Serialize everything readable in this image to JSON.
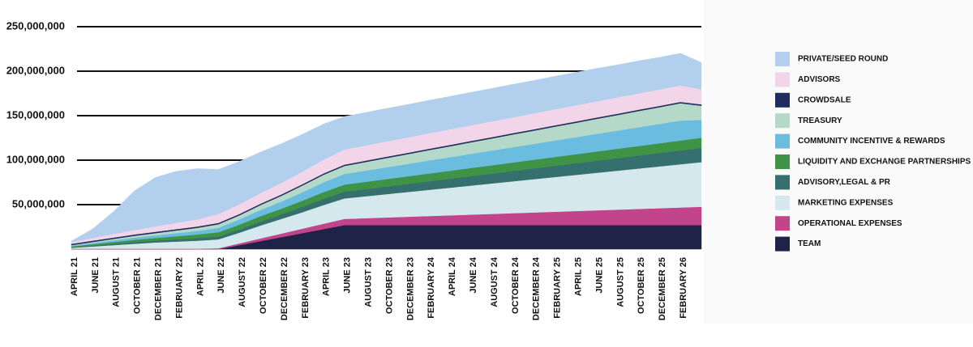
{
  "chart_data": {
    "type": "stacked-area",
    "categories": [
      "APRIL 21",
      "JUNE 21",
      "AUGUST 21",
      "OCTOBER 21",
      "DECEMBER 21",
      "FEBRUARY 22",
      "APRIL 22",
      "JUNE 22",
      "AUGUST 22",
      "OCTOBER 22",
      "DECEMBER 22",
      "FEBRUARY 23",
      "APRIL 23",
      "JUNE 23",
      "AUGUST 23",
      "OCTOBER 23",
      "DECEMBER 23",
      "FEBRUARY 24",
      "APRIL 24",
      "JUNE 24",
      "AUGUST 24",
      "OCTOBER 24",
      "DECEMBER 24",
      "FEBRUARY 25",
      "APRIL 25",
      "JUNE 25",
      "AUGUST 25",
      "OCTOBER 25",
      "DECEMBER 25",
      "FEBRUARY 26",
      null
    ],
    "ylim": [
      0,
      250000000
    ],
    "yticks": [
      {
        "value": 50000000,
        "label": "50,000,000"
      },
      {
        "value": 100000000,
        "label": "100,000,000"
      },
      {
        "value": 150000000,
        "label": "150,000,000"
      },
      {
        "value": 200000000,
        "label": "200,000,000"
      },
      {
        "value": 250000000,
        "label": "250,000,000"
      }
    ],
    "grid": true,
    "legend": "right",
    "series": [
      {
        "name": "PRIVATE/SEED ROUND",
        "color": "#b3cfee",
        "values": [
          1000000,
          10000000,
          25000000,
          44000000,
          55000000,
          58000000,
          57000000,
          50000000,
          48000000,
          46000000,
          44000000,
          42000000,
          40000000,
          37000000,
          37000000,
          37000000,
          37000000,
          37000000,
          37000000,
          37000000,
          37000000,
          37000000,
          37000000,
          37000000,
          37000000,
          37000000,
          36500000,
          36500000,
          36000000,
          36000000,
          30000000
        ]
      },
      {
        "name": "ADVISORS",
        "color": "#f2d5e8",
        "values": [
          2000000,
          3000000,
          4000000,
          5000000,
          6000000,
          7000000,
          8000000,
          10000000,
          11000000,
          12000000,
          13000000,
          14000000,
          15500000,
          17000000,
          17100000,
          17200000,
          17300000,
          17400000,
          17500000,
          17600000,
          17700000,
          17800000,
          17900000,
          18000000,
          18100000,
          18200000,
          18300000,
          18400000,
          18500000,
          18600000,
          17000000
        ]
      },
      {
        "name": "CROWDSALE",
        "color": "#1f2d5c",
        "values": [
          1500000,
          1500000,
          1500000,
          1500000,
          1500000,
          1500000,
          1500000,
          1500000,
          1500000,
          1500000,
          1500000,
          1500000,
          1500000,
          1500000,
          1500000,
          1500000,
          1500000,
          1500000,
          1500000,
          1500000,
          1500000,
          1500000,
          1500000,
          1500000,
          1500000,
          1500000,
          1500000,
          1500000,
          1500000,
          1500000,
          1500000
        ]
      },
      {
        "name": "TREASURY",
        "color": "#b5d9c8",
        "values": [
          500000,
          1000000,
          1500000,
          2000000,
          2500000,
          3000000,
          3500000,
          4000000,
          4500000,
          5500000,
          6500000,
          7500000,
          8500000,
          9000000,
          9700000,
          10400000,
          11000000,
          11700000,
          12300000,
          13000000,
          13600000,
          14300000,
          14900000,
          15600000,
          16200000,
          16900000,
          17500000,
          18200000,
          18800000,
          19500000,
          16000000
        ]
      },
      {
        "name": "COMMUNITY INCENTIVE & REWARDS",
        "color": "#6bbde0",
        "values": [
          1000000,
          1500000,
          2000000,
          2500000,
          3000000,
          3500000,
          4000000,
          5000000,
          6000000,
          7000000,
          8000000,
          9500000,
          11000000,
          12000000,
          12600000,
          13300000,
          13900000,
          14600000,
          15200000,
          15900000,
          16500000,
          17200000,
          17800000,
          18500000,
          19100000,
          19800000,
          20400000,
          21100000,
          21700000,
          22400000,
          20000000
        ]
      },
      {
        "name": "LIQUIDITY AND EXCHANGE PARTNERSHIPS",
        "color": "#3e9347",
        "values": [
          1000000,
          1500000,
          2000000,
          2500000,
          3000000,
          3500000,
          4000000,
          5000000,
          5500000,
          6000000,
          6500000,
          7000000,
          7500000,
          8000000,
          8200000,
          8400000,
          8600000,
          8800000,
          9000000,
          9200000,
          9400000,
          9600000,
          9800000,
          10000000,
          10200000,
          10400000,
          10600000,
          10800000,
          11000000,
          11200000,
          11400000
        ]
      },
      {
        "name": "ADVISORY,LEGAL & PR",
        "color": "#36706e",
        "values": [
          500000,
          1000000,
          1500000,
          2000000,
          2000000,
          2500000,
          3000000,
          3000000,
          3500000,
          4500000,
          5000000,
          6000000,
          7000000,
          7500000,
          8000000,
          8500000,
          9000000,
          9500000,
          10000000,
          10500000,
          11000000,
          11500000,
          12000000,
          12500000,
          13000000,
          13500000,
          14000000,
          14500000,
          15000000,
          15500000,
          16000000
        ]
      },
      {
        "name": "MARKETING EXPENSES",
        "color": "#d5e8ee",
        "values": [
          1000000,
          2500000,
          4000000,
          5500000,
          7000000,
          8000000,
          9000000,
          10000000,
          12000000,
          14500000,
          16500000,
          18500000,
          21000000,
          23000000,
          24600000,
          26200000,
          27800000,
          29400000,
          31000000,
          32600000,
          34200000,
          35800000,
          37400000,
          39000000,
          40600000,
          42200000,
          43800000,
          45400000,
          47000000,
          48600000,
          50200000
        ]
      },
      {
        "name": "OPERATIONAL EXPENSES",
        "color": "#c2448a",
        "values": [
          500000,
          500000,
          500000,
          500000,
          500000,
          500000,
          500000,
          1000000,
          2000000,
          3000000,
          4000000,
          5000000,
          6000000,
          7000000,
          7800000,
          8600000,
          9400000,
          10200000,
          11000000,
          11800000,
          12600000,
          13400000,
          14200000,
          15000000,
          15800000,
          16600000,
          17400000,
          18200000,
          19000000,
          19800000,
          20600000
        ]
      },
      {
        "name": "TEAM",
        "color": "#1e2347",
        "values": [
          0,
          0,
          0,
          0,
          0,
          0,
          0,
          0,
          4500000,
          9000000,
          13500000,
          18000000,
          22500000,
          27000000,
          27000000,
          27000000,
          27000000,
          27000000,
          27000000,
          27000000,
          27000000,
          27000000,
          27000000,
          27000000,
          27000000,
          27000000,
          27000000,
          27000000,
          27000000,
          27000000,
          27000000
        ]
      }
    ]
  }
}
